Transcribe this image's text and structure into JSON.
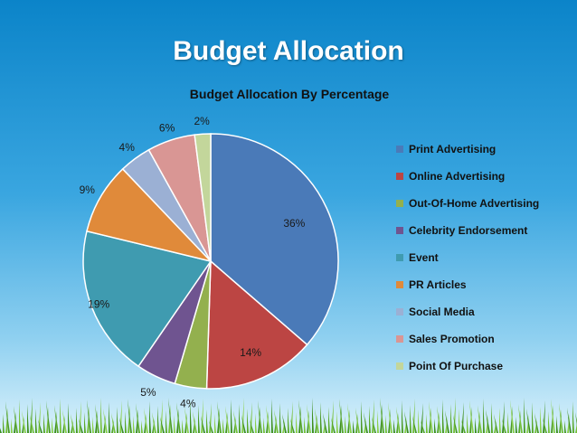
{
  "slide": {
    "title": "Budget Allocation"
  },
  "chart_data": {
    "type": "pie",
    "title": "Budget Allocation By Percentage",
    "legend_position": "right",
    "start_angle_deg": 0,
    "direction": "clockwise",
    "slices": [
      {
        "label": "Print Advertising",
        "value": 36,
        "value_label": "36%",
        "color": "#4a7ab8"
      },
      {
        "label": "Online Advertising",
        "value": 14,
        "value_label": "14%",
        "color": "#bc4543"
      },
      {
        "label": "Out-Of-Home Advertising",
        "value": 4,
        "value_label": "4%",
        "color": "#93b04e"
      },
      {
        "label": "Celebrity Endorsement",
        "value": 5,
        "value_label": "5%",
        "color": "#6f5490"
      },
      {
        "label": "Event",
        "value": 19,
        "value_label": "19%",
        "color": "#3f9bb0"
      },
      {
        "label": "PR Articles",
        "value": 9,
        "value_label": "9%",
        "color": "#e08a3a"
      },
      {
        "label": "Social Media",
        "value": 4,
        "value_label": "4%",
        "color": "#9bb0d4"
      },
      {
        "label": "Sales Promotion",
        "value": 6,
        "value_label": "6%",
        "color": "#d99694"
      },
      {
        "label": "Point Of Purchase",
        "value": 2,
        "value_label": "2%",
        "color": "#c3d69b"
      }
    ]
  }
}
